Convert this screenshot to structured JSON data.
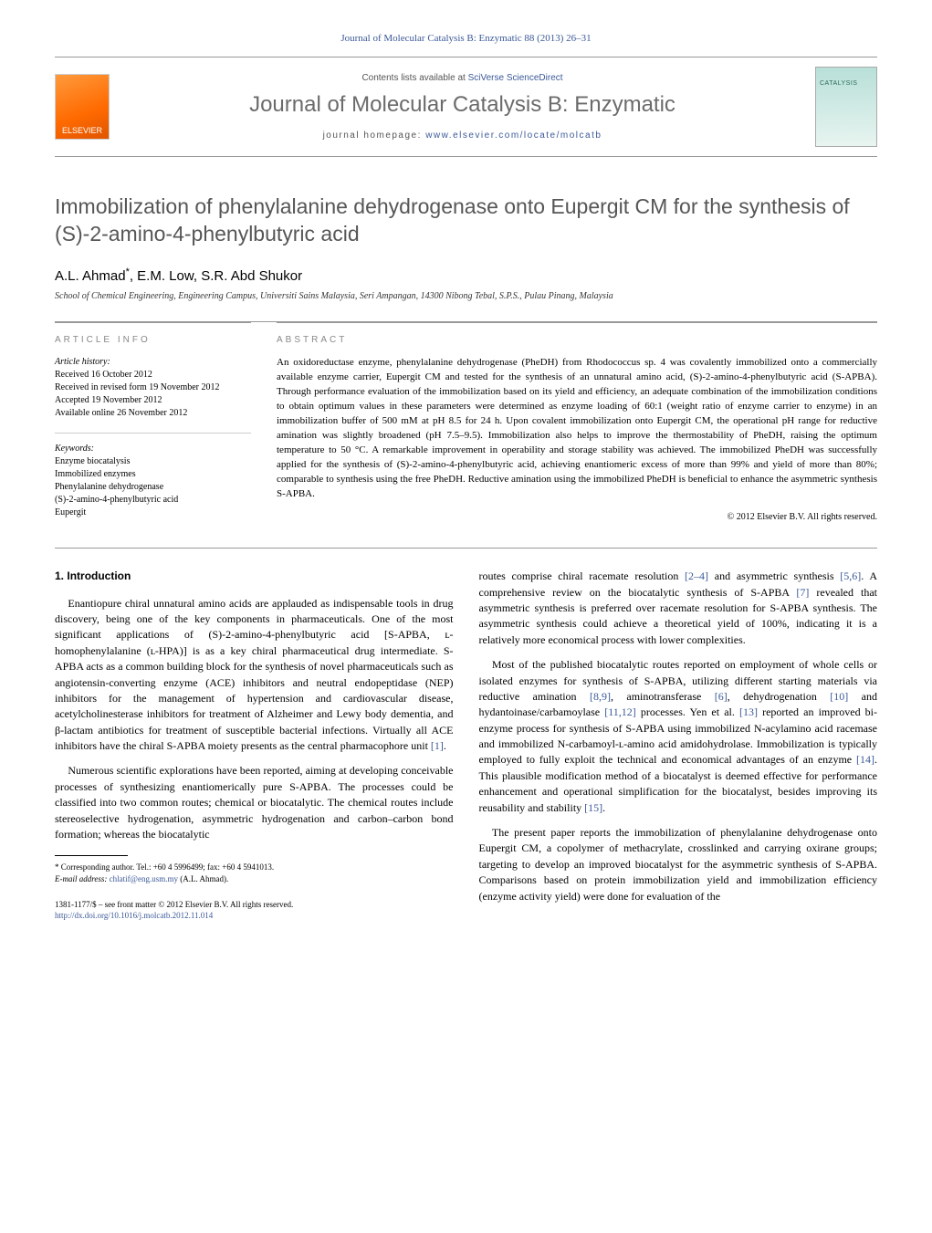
{
  "header": {
    "citation": "Journal of Molecular Catalysis B: Enzymatic 88 (2013) 26–31",
    "contents_prefix": "Contents lists available at ",
    "contents_link": "SciVerse ScienceDirect",
    "journal_name": "Journal of Molecular Catalysis B: Enzymatic",
    "homepage_prefix": "journal homepage: ",
    "homepage_url": "www.elsevier.com/locate/molcatb",
    "publisher_logo": "ELSEVIER"
  },
  "article": {
    "title": "Immobilization of phenylalanine dehydrogenase onto Eupergit CM for the synthesis of (S)-2-amino-4-phenylbutyric acid",
    "authors": "A.L. Ahmad",
    "author_suffix": "*",
    "authors_rest": ", E.M. Low, S.R. Abd Shukor",
    "affiliation": "School of Chemical Engineering, Engineering Campus, Universiti Sains Malaysia, Seri Ampangan, 14300 Nibong Tebal, S.P.S., Pulau Pinang, Malaysia"
  },
  "meta": {
    "info_head": "article info",
    "history_label": "Article history:",
    "received": "Received 16 October 2012",
    "revised": "Received in revised form 19 November 2012",
    "accepted": "Accepted 19 November 2012",
    "online": "Available online 26 November 2012",
    "kw_label": "Keywords:",
    "kw": [
      "Enzyme biocatalysis",
      "Immobilized enzymes",
      "Phenylalanine dehydrogenase",
      "(S)-2-amino-4-phenylbutyric acid",
      "Eupergit"
    ],
    "abs_head": "abstract",
    "abstract": "An oxidoreductase enzyme, phenylalanine dehydrogenase (PheDH) from Rhodococcus sp. 4 was covalently immobilized onto a commercially available enzyme carrier, Eupergit CM and tested for the synthesis of an unnatural amino acid, (S)-2-amino-4-phenylbutyric acid (S-APBA). Through performance evaluation of the immobilization based on its yield and efficiency, an adequate combination of the immobilization conditions to obtain optimum values in these parameters were determined as enzyme loading of 60:1 (weight ratio of enzyme carrier to enzyme) in an immobilization buffer of 500 mM at pH 8.5 for 24 h. Upon covalent immobilization onto Eupergit CM, the operational pH range for reductive amination was slightly broadened (pH 7.5–9.5). Immobilization also helps to improve the thermostability of PheDH, raising the optimum temperature to 50 °C. A remarkable improvement in operability and storage stability was achieved. The immobilized PheDH was successfully applied for the synthesis of (S)-2-amino-4-phenylbutyric acid, achieving enantiomeric excess of more than 99% and yield of more than 80%; comparable to synthesis using the free PheDH. Reductive amination using the immobilized PheDH is beneficial to enhance the asymmetric synthesis S-APBA.",
    "copyright": "© 2012 Elsevier B.V. All rights reserved."
  },
  "body": {
    "section_num": "1.",
    "section_title": "Introduction",
    "p1": "Enantiopure chiral unnatural amino acids are applauded as indispensable tools in drug discovery, being one of the key components in pharmaceuticals. One of the most significant applications of (S)-2-amino-4-phenylbutyric acid [S-APBA, ʟ-homophenylalanine (ʟ-HPA)] is as a key chiral pharmaceutical drug intermediate. S-APBA acts as a common building block for the synthesis of novel pharmaceuticals such as angiotensin-converting enzyme (ACE) inhibitors and neutral endopeptidase (NEP) inhibitors for the management of hypertension and cardiovascular disease, acetylcholinesterase inhibitors for treatment of Alzheimer and Lewy body dementia, and β-lactam antibiotics for treatment of susceptible bacterial infections. Virtually all ACE inhibitors have the chiral S-APBA moiety presents as the central pharmacophore unit ",
    "p1_ref": "[1]",
    "p1_end": ".",
    "p2": "Numerous scientific explorations have been reported, aiming at developing conceivable processes of synthesizing enantiomerically pure S-APBA. The processes could be classified into two common routes; chemical or biocatalytic. The chemical routes include stereoselective hydrogenation, asymmetric hydrogenation and carbon–carbon bond formation; whereas the biocatalytic",
    "p3a": "routes comprise chiral racemate resolution ",
    "p3_ref1": "[2–4]",
    "p3b": " and asymmetric synthesis ",
    "p3_ref2": "[5,6]",
    "p3c": ". A comprehensive review on the biocatalytic synthesis of S-APBA ",
    "p3_ref3": "[7]",
    "p3d": " revealed that asymmetric synthesis is preferred over racemate resolution for S-APBA synthesis. The asymmetric synthesis could achieve a theoretical yield of 100%, indicating it is a relatively more economical process with lower complexities.",
    "p4a": "Most of the published biocatalytic routes reported on employment of whole cells or isolated enzymes for synthesis of S-APBA, utilizing different starting materials via reductive amination ",
    "p4_ref1": "[8,9]",
    "p4b": ", aminotransferase ",
    "p4_ref2": "[6]",
    "p4c": ", dehydrogenation ",
    "p4_ref3": "[10]",
    "p4d": " and hydantoinase/carbamoylase ",
    "p4_ref4": "[11,12]",
    "p4e": " processes. Yen et al. ",
    "p4_ref5": "[13]",
    "p4f": " reported an improved bi-enzyme process for synthesis of S-APBA using immobilized N-acylamino acid racemase and immobilized N-carbamoyl-ʟ-amino acid amidohydrolase. Immobilization is typically employed to fully exploit the technical and economical advantages of an enzyme ",
    "p4_ref6": "[14]",
    "p4g": ". This plausible modification method of a biocatalyst is deemed effective for performance enhancement and operational simplification for the biocatalyst, besides improving its reusability and stability ",
    "p4_ref7": "[15]",
    "p4h": ".",
    "p5": "The present paper reports the immobilization of phenylalanine dehydrogenase onto Eupergit CM, a copolymer of methacrylate, crosslinked and carrying oxirane groups; targeting to develop an improved biocatalyst for the asymmetric synthesis of S-APBA. Comparisons based on protein immobilization yield and immobilization efficiency (enzyme activity yield) were done for evaluation of the"
  },
  "footnote": {
    "corr": "* Corresponding author. Tel.: +60 4 5996499; fax: +60 4 5941013.",
    "email_label": "E-mail address: ",
    "email": "chlatif@eng.usm.my",
    "email_suffix": " (A.L. Ahmad)."
  },
  "footer": {
    "issn": "1381-1177/$ – see front matter © 2012 Elsevier B.V. All rights reserved.",
    "doi": "http://dx.doi.org/10.1016/j.molcatb.2012.11.014"
  }
}
